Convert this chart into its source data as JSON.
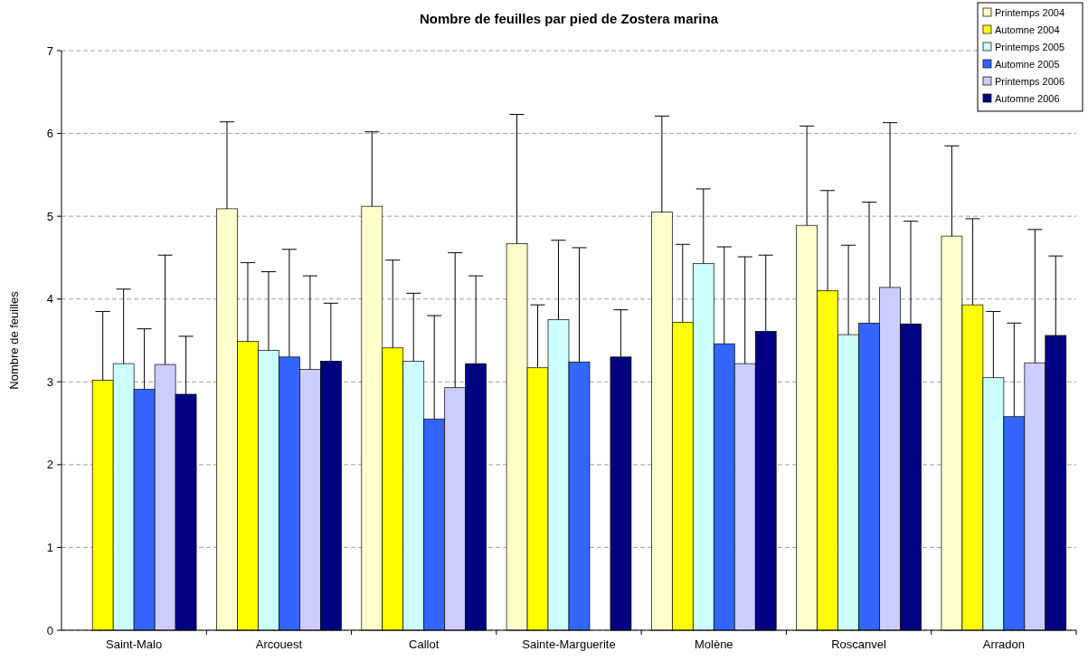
{
  "chart_data": {
    "type": "bar",
    "title": "Nombre de feuilles par pied de Zostera marina",
    "ylabel": "Nombre de feuilles",
    "categories": [
      "Saint-Malo",
      "Arcouest",
      "Callot",
      "Sainte-Marguerite",
      "Molène",
      "Roscanvel",
      "Arradon"
    ],
    "series": [
      {
        "name": "Printemps 2004",
        "color": "#ffffcc",
        "values": [
          null,
          5.09,
          5.12,
          4.67,
          5.05,
          4.89,
          4.76
        ],
        "errors": [
          null,
          [
            5.09,
            6.14
          ],
          [
            5.12,
            6.02
          ],
          [
            4.67,
            6.23
          ],
          [
            5.05,
            6.21
          ],
          [
            4.89,
            6.09
          ],
          [
            4.76,
            5.85
          ]
        ]
      },
      {
        "name": "Automne 2004",
        "color": "#ffff00",
        "values": [
          3.02,
          3.49,
          3.41,
          3.17,
          3.72,
          4.1,
          3.93
        ],
        "errors": [
          [
            3.02,
            3.85
          ],
          [
            3.49,
            4.44
          ],
          [
            3.41,
            4.47
          ],
          [
            3.17,
            3.93
          ],
          [
            3.72,
            4.66
          ],
          [
            4.1,
            5.31
          ],
          [
            3.93,
            4.97
          ]
        ]
      },
      {
        "name": "Printemps 2005",
        "color": "#ccffff",
        "values": [
          3.22,
          3.38,
          3.25,
          3.75,
          4.43,
          3.57,
          3.05
        ],
        "errors": [
          [
            3.22,
            4.12
          ],
          [
            3.38,
            4.33
          ],
          [
            3.25,
            4.07
          ],
          [
            3.75,
            4.71
          ],
          [
            4.43,
            5.33
          ],
          [
            3.57,
            4.65
          ],
          [
            3.05,
            3.85
          ]
        ]
      },
      {
        "name": "Automne 2005",
        "color": "#3366ff",
        "values": [
          2.91,
          3.3,
          2.55,
          3.24,
          3.46,
          3.71,
          2.58
        ],
        "errors": [
          [
            2.91,
            3.64
          ],
          [
            3.3,
            4.6
          ],
          [
            2.55,
            3.8
          ],
          [
            3.24,
            4.62
          ],
          [
            3.46,
            4.63
          ],
          [
            3.71,
            5.17
          ],
          [
            2.58,
            3.71
          ]
        ]
      },
      {
        "name": "Printemps 2006",
        "color": "#ccccff",
        "values": [
          3.21,
          3.15,
          2.93,
          null,
          3.22,
          4.14,
          3.23
        ],
        "errors": [
          [
            3.21,
            4.53
          ],
          [
            3.15,
            4.28
          ],
          [
            2.93,
            4.56
          ],
          null,
          [
            3.22,
            4.51
          ],
          [
            4.14,
            6.13
          ],
          [
            3.23,
            4.84
          ]
        ]
      },
      {
        "name": "Automne 2006",
        "color": "#000080",
        "values": [
          2.85,
          3.25,
          3.22,
          3.3,
          3.61,
          3.7,
          3.56
        ],
        "errors": [
          [
            2.85,
            3.55
          ],
          [
            3.25,
            3.95
          ],
          [
            3.22,
            4.28
          ],
          [
            3.3,
            3.87
          ],
          [
            3.61,
            4.53
          ],
          [
            3.7,
            4.94
          ],
          [
            3.56,
            4.52
          ]
        ]
      }
    ],
    "ylim": [
      0,
      7
    ],
    "yticks": [
      0,
      1,
      2,
      3,
      4,
      5,
      6,
      7
    ],
    "grid": "y",
    "legend": "top right"
  }
}
